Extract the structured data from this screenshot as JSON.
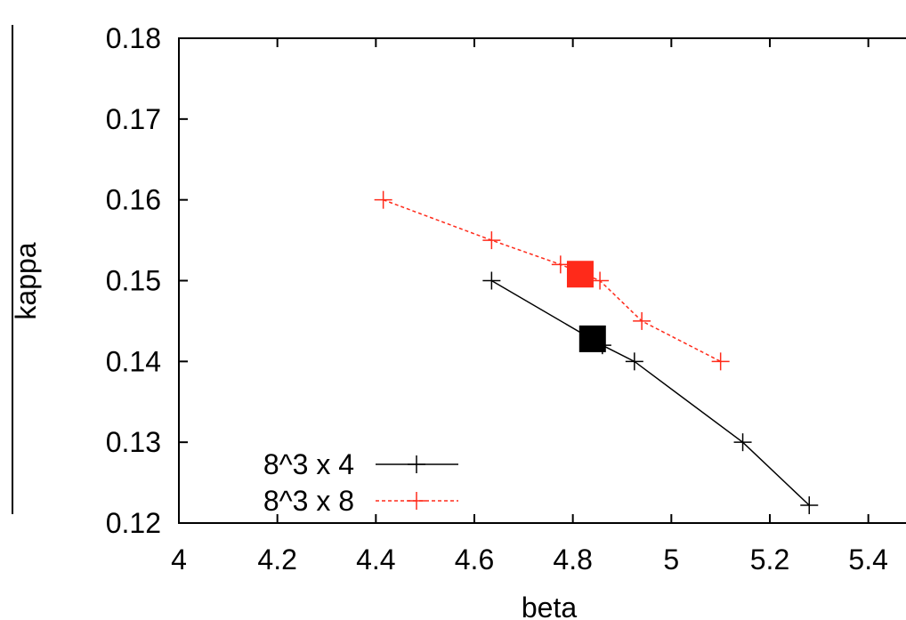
{
  "chart_data": {
    "type": "line",
    "title": "",
    "xlabel": "beta",
    "ylabel": "kappa",
    "xlim": [
      4,
      5.5
    ],
    "ylim": [
      0.12,
      0.18
    ],
    "x_ticks": [
      4,
      4.2,
      4.4,
      4.6,
      4.8,
      5,
      5.2,
      5.4
    ],
    "x_tick_labels": [
      "4",
      "4.2",
      "4.4",
      "4.6",
      "4.8",
      "5",
      "5.2",
      "5.4"
    ],
    "y_ticks": [
      0.12,
      0.13,
      0.14,
      0.15,
      0.16,
      0.17,
      0.18
    ],
    "y_tick_labels": [
      "0.12",
      "0.13",
      "0.14",
      "0.15",
      "0.16",
      "0.17",
      "0.18"
    ],
    "grid": false,
    "legend_position": "bottom-left",
    "series": [
      {
        "name": "8^3 x 4",
        "color": "#000000",
        "line_style": "solid",
        "marker": "plus",
        "points": [
          {
            "x": 4.635,
            "y": 0.15
          },
          {
            "x": 4.86,
            "y": 0.142
          },
          {
            "x": 4.925,
            "y": 0.14
          },
          {
            "x": 5.145,
            "y": 0.13
          },
          {
            "x": 5.28,
            "y": 0.1222
          }
        ],
        "highlight": {
          "x": 4.84,
          "y": 0.1428,
          "marker": "square"
        }
      },
      {
        "name": "8^3 x 8",
        "color": "#ff2a1a",
        "line_style": "dashed",
        "marker": "plus",
        "points": [
          {
            "x": 4.415,
            "y": 0.16
          },
          {
            "x": 4.635,
            "y": 0.155
          },
          {
            "x": 4.775,
            "y": 0.152
          },
          {
            "x": 4.855,
            "y": 0.15
          },
          {
            "x": 4.94,
            "y": 0.145
          },
          {
            "x": 5.1,
            "y": 0.14
          }
        ],
        "highlight": {
          "x": 4.815,
          "y": 0.1508,
          "marker": "square"
        }
      }
    ]
  }
}
